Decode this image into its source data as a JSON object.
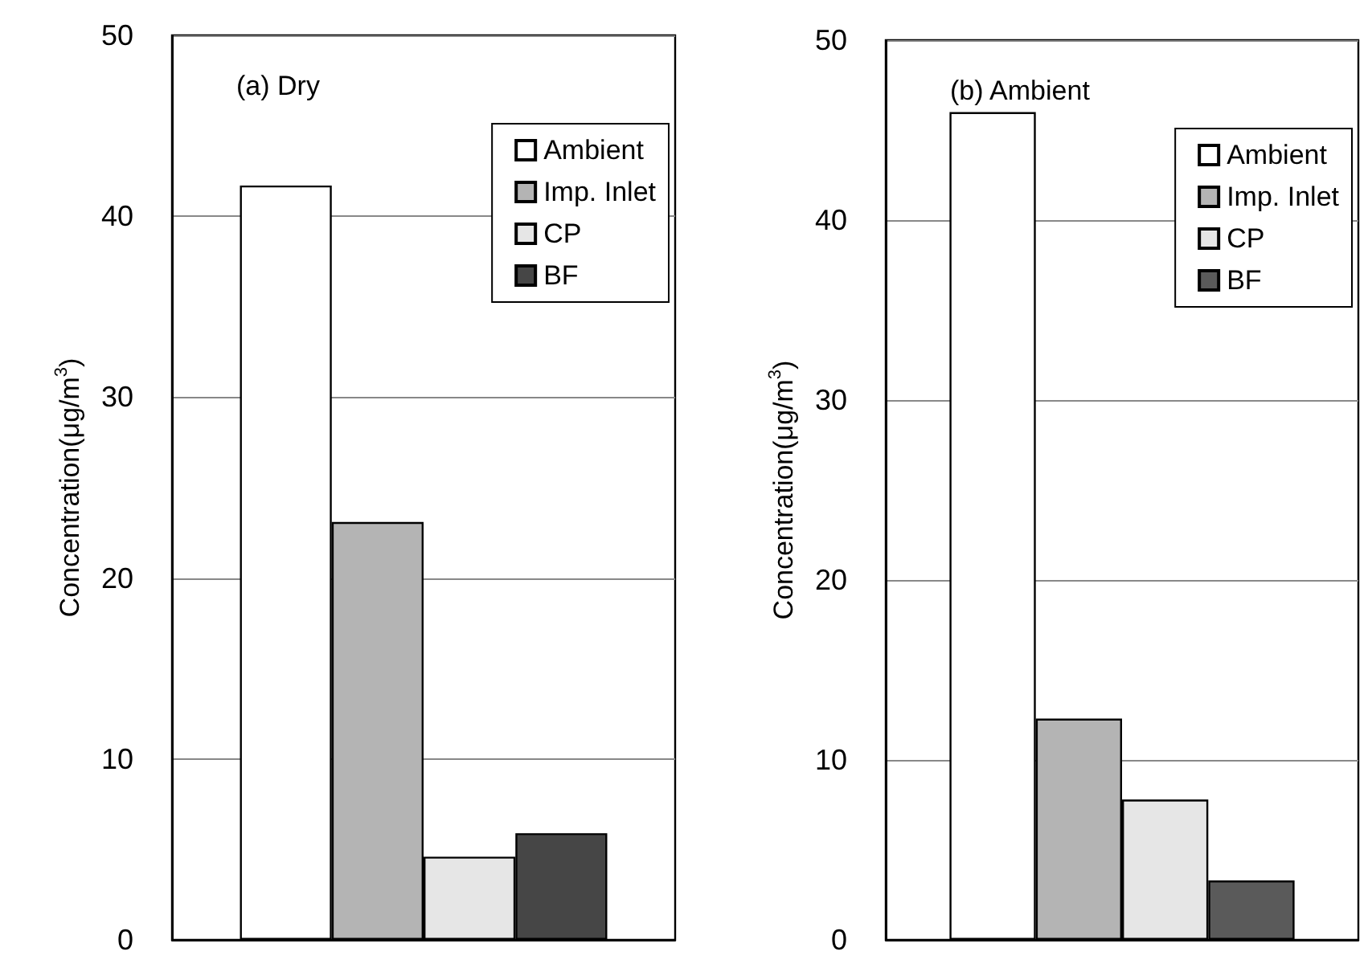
{
  "chart_data": [
    {
      "type": "bar",
      "title": "(a) Dry",
      "ylabel": "Concentration(μg/m$^{3}$)",
      "categories": [
        null
      ],
      "series": [
        {
          "name": "Ambient",
          "color": "#ffffff",
          "values": [
            41.7
          ]
        },
        {
          "name": "Imp. Inlet",
          "color": "#b4b4b4",
          "values": [
            23.1
          ]
        },
        {
          "name": "CP",
          "color": "#e6e6e6",
          "values": [
            4.6
          ]
        },
        {
          "name": "BF",
          "color": "#464646",
          "values": [
            5.9
          ]
        }
      ],
      "ylim": [
        0,
        50
      ],
      "yticks": [
        0,
        10,
        20,
        30,
        40,
        50
      ],
      "grid": "y",
      "legend": "top right",
      "tick_labels": "y"
    },
    {
      "type": "bar",
      "title": "(b) Ambient",
      "ylabel": "Concentration(μg/m$^{3}$)",
      "categories": [
        null
      ],
      "series": [
        {
          "name": "Ambient",
          "color": "#ffffff",
          "values": [
            46.0
          ]
        },
        {
          "name": "Imp. Inlet",
          "color": "#b4b4b4",
          "values": [
            12.3
          ]
        },
        {
          "name": "CP",
          "color": "#e6e6e6",
          "values": [
            7.8
          ]
        },
        {
          "name": "BF",
          "color": "#5a5a5a",
          "values": [
            3.3
          ]
        }
      ],
      "ylim": [
        0,
        50
      ],
      "yticks": [
        0,
        10,
        20,
        30,
        40,
        50
      ],
      "grid": "y",
      "legend": "top right",
      "tick_labels": "y"
    }
  ]
}
